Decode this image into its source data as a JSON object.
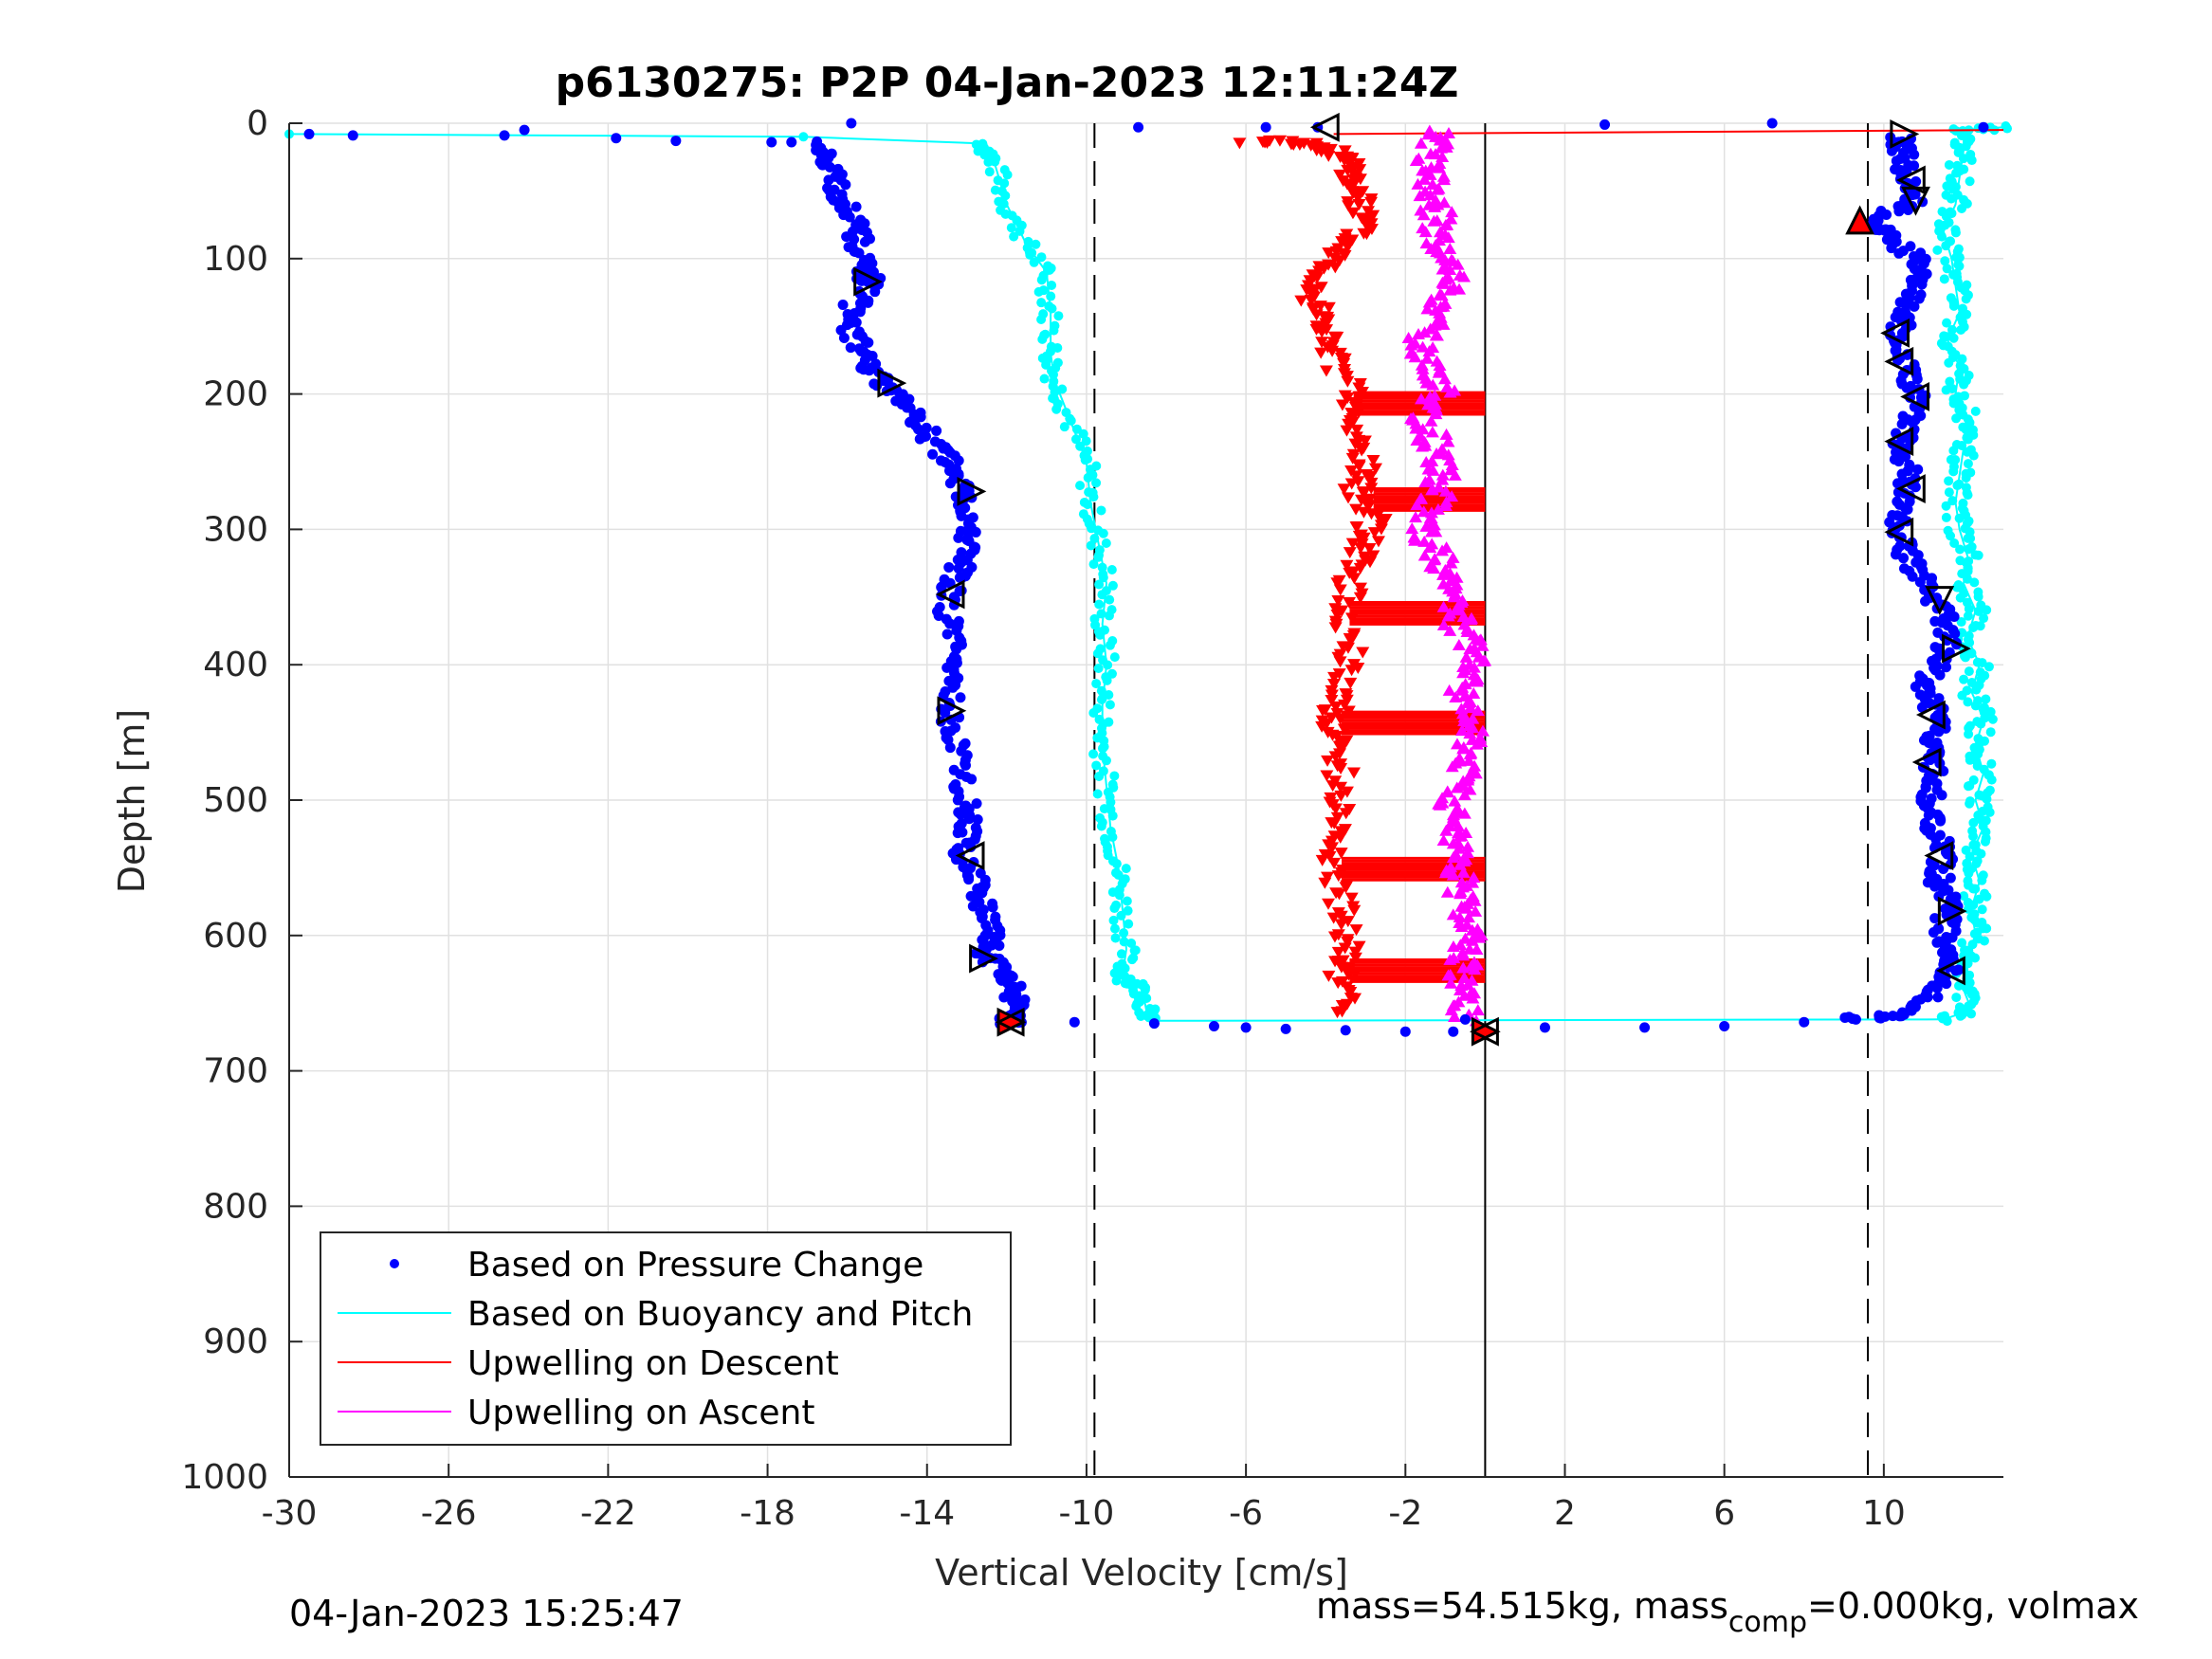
{
  "chart_data": {
    "type": "scatter",
    "title": "p6130275: P2P 04-Jan-2023 12:11:24Z",
    "xlabel": "Vertical Velocity [cm/s]",
    "ylabel": "Depth [m]",
    "xlim": [
      -30,
      13
    ],
    "ylim": [
      0,
      1000
    ],
    "y_reversed": true,
    "grid": true,
    "xticks": [
      -30,
      -26,
      -22,
      -18,
      -14,
      -10,
      -6,
      -2,
      2,
      6,
      10
    ],
    "yticks": [
      0,
      100,
      200,
      300,
      400,
      500,
      600,
      700,
      800,
      900,
      1000
    ],
    "reference_lines": [
      {
        "style": "dashed",
        "x": -9.8
      },
      {
        "style": "dashed",
        "x": 9.6
      },
      {
        "style": "solid",
        "x": 0
      }
    ],
    "legend": {
      "position": "lower-left",
      "entries": [
        {
          "label": "Based on Pressure Change",
          "color": "#0000ff",
          "marker": "dot"
        },
        {
          "label": "Based on Buoyancy and Pitch",
          "color": "#00ffff",
          "marker": "line"
        },
        {
          "label": "Upwelling on Descent",
          "color": "#ff0000",
          "marker": "line"
        },
        {
          "label": "Upwelling on Ascent",
          "color": "#ff00ff",
          "marker": "line"
        }
      ]
    },
    "series": [
      {
        "name": "Based on Pressure Change",
        "color": "#0000ff",
        "descent_profile": [
          [
            -16.8,
            15
          ],
          [
            -16.5,
            30
          ],
          [
            -16.2,
            50
          ],
          [
            -15.8,
            70
          ],
          [
            -15.7,
            90
          ],
          [
            -15.6,
            110
          ],
          [
            -15.3,
            120
          ],
          [
            -16.0,
            140
          ],
          [
            -15.8,
            160
          ],
          [
            -15.5,
            180
          ],
          [
            -15.0,
            195
          ],
          [
            -14.5,
            210
          ],
          [
            -14.0,
            230
          ],
          [
            -13.5,
            250
          ],
          [
            -13.2,
            270
          ],
          [
            -13.0,
            290
          ],
          [
            -13.0,
            310
          ],
          [
            -13.2,
            330
          ],
          [
            -13.5,
            350
          ],
          [
            -13.4,
            380
          ],
          [
            -13.5,
            410
          ],
          [
            -13.4,
            440
          ],
          [
            -13.2,
            470
          ],
          [
            -13.0,
            500
          ],
          [
            -13.0,
            520
          ],
          [
            -13.1,
            540
          ],
          [
            -12.8,
            560
          ],
          [
            -12.6,
            580
          ],
          [
            -12.4,
            600
          ],
          [
            -12.5,
            615
          ],
          [
            -12.0,
            630
          ],
          [
            -11.8,
            645
          ],
          [
            -11.9,
            660
          ],
          [
            -11.9,
            665
          ]
        ],
        "ascent_profile": [
          [
            -0.5,
            662
          ],
          [
            1.5,
            668
          ],
          [
            4,
            668
          ],
          [
            6,
            667
          ],
          [
            8,
            664
          ],
          [
            9.3,
            662
          ],
          [
            10.6,
            658
          ],
          [
            11.3,
            640
          ],
          [
            11.7,
            620
          ],
          [
            11.5,
            600
          ],
          [
            11.6,
            580
          ],
          [
            11.4,
            560
          ],
          [
            11.5,
            540
          ],
          [
            11.3,
            520
          ],
          [
            11.2,
            500
          ],
          [
            11.3,
            480
          ],
          [
            11.1,
            460
          ],
          [
            11.4,
            440
          ],
          [
            11.0,
            420
          ],
          [
            11.3,
            400
          ],
          [
            11.6,
            380
          ],
          [
            11.5,
            360
          ],
          [
            11.0,
            340
          ],
          [
            10.6,
            320
          ],
          [
            10.3,
            300
          ],
          [
            10.5,
            280
          ],
          [
            10.7,
            260
          ],
          [
            10.4,
            240
          ],
          [
            10.7,
            220
          ],
          [
            10.8,
            200
          ],
          [
            10.5,
            180
          ],
          [
            10.3,
            160
          ],
          [
            10.6,
            140
          ],
          [
            10.9,
            120
          ],
          [
            10.8,
            100
          ],
          [
            10.0,
            80
          ],
          [
            9.5,
            75
          ],
          [
            10.7,
            60
          ],
          [
            10.5,
            40
          ],
          [
            10.5,
            20
          ],
          [
            10.4,
            10
          ]
        ],
        "surface_points": [
          [
            -29.5,
            8
          ],
          [
            -28.4,
            9
          ],
          [
            -24.6,
            9
          ],
          [
            -24.1,
            5
          ],
          [
            -21.8,
            11
          ],
          [
            -20.3,
            13
          ],
          [
            -17.9,
            14
          ],
          [
            -17.4,
            14
          ],
          [
            -15.9,
            0
          ],
          [
            -8.7,
            3
          ],
          [
            -5.5,
            3
          ],
          [
            -4.2,
            3
          ],
          [
            3.0,
            1
          ],
          [
            7.2,
            0
          ],
          [
            12.5,
            3
          ],
          [
            -10.3,
            664
          ],
          [
            -8.3,
            665
          ],
          [
            -6.8,
            667
          ],
          [
            -6.0,
            668
          ],
          [
            -5.0,
            669
          ],
          [
            -3.5,
            670
          ],
          [
            -2.0,
            671
          ],
          [
            -0.8,
            671
          ]
        ]
      },
      {
        "name": "Based on Buoyancy and Pitch",
        "color": "#00ffff",
        "descent_profile": [
          [
            -30,
            8
          ],
          [
            -17.1,
            10
          ],
          [
            -12.6,
            15
          ],
          [
            -12.3,
            30
          ],
          [
            -12.0,
            60
          ],
          [
            -11.5,
            90
          ],
          [
            -11.0,
            110
          ],
          [
            -10.9,
            140
          ],
          [
            -10.9,
            170
          ],
          [
            -10.8,
            190
          ],
          [
            -10.4,
            220
          ],
          [
            -10.0,
            250
          ],
          [
            -9.9,
            280
          ],
          [
            -9.7,
            310
          ],
          [
            -9.5,
            340
          ],
          [
            -9.6,
            370
          ],
          [
            -9.5,
            400
          ],
          [
            -9.6,
            430
          ],
          [
            -9.6,
            460
          ],
          [
            -9.5,
            490
          ],
          [
            -9.4,
            520
          ],
          [
            -9.2,
            550
          ],
          [
            -9.1,
            580
          ],
          [
            -9.0,
            610
          ],
          [
            -9.1,
            630
          ],
          [
            -8.6,
            640
          ],
          [
            -8.5,
            655
          ],
          [
            -8.5,
            663
          ]
        ],
        "ascent_profile": [
          [
            -8.5,
            663
          ],
          [
            11.5,
            662
          ],
          [
            12.2,
            655
          ],
          [
            12.0,
            640
          ],
          [
            12.0,
            620
          ],
          [
            12.3,
            600
          ],
          [
            12.2,
            580
          ],
          [
            12.4,
            560
          ],
          [
            12.2,
            540
          ],
          [
            12.5,
            520
          ],
          [
            12.3,
            500
          ],
          [
            12.5,
            480
          ],
          [
            12.3,
            460
          ],
          [
            12.5,
            440
          ],
          [
            12.2,
            420
          ],
          [
            12.4,
            400
          ],
          [
            12.1,
            380
          ],
          [
            12.3,
            360
          ],
          [
            12.0,
            340
          ],
          [
            12.1,
            320
          ],
          [
            11.9,
            300
          ],
          [
            11.8,
            280
          ],
          [
            11.9,
            260
          ],
          [
            12.0,
            240
          ],
          [
            12.1,
            220
          ],
          [
            11.8,
            200
          ],
          [
            11.9,
            180
          ],
          [
            11.6,
            160
          ],
          [
            11.9,
            140
          ],
          [
            11.8,
            120
          ],
          [
            11.7,
            100
          ],
          [
            11.5,
            80
          ],
          [
            11.8,
            60
          ],
          [
            11.9,
            40
          ],
          [
            12.0,
            20
          ],
          [
            12.0,
            5
          ],
          [
            13,
            3
          ]
        ]
      },
      {
        "name": "Upwelling on Descent",
        "color": "#ff0000",
        "profile": [
          [
            -5.9,
            13
          ],
          [
            -4.3,
            15
          ],
          [
            -3.5,
            25
          ],
          [
            -3.3,
            40
          ],
          [
            -3.2,
            55
          ],
          [
            -3.0,
            75
          ],
          [
            -3.5,
            90
          ],
          [
            -4.0,
            110
          ],
          [
            -4.3,
            130
          ],
          [
            -4.0,
            150
          ],
          [
            -3.9,
            170
          ],
          [
            -3.3,
            200
          ],
          [
            -3.4,
            220
          ],
          [
            -3.0,
            250
          ],
          [
            -3.2,
            270
          ],
          [
            -2.8,
            290
          ],
          [
            -3.0,
            310
          ],
          [
            -3.3,
            330
          ],
          [
            -3.5,
            360
          ],
          [
            -3.4,
            390
          ],
          [
            -3.6,
            420
          ],
          [
            -3.8,
            440
          ],
          [
            -3.7,
            460
          ],
          [
            -3.6,
            490
          ],
          [
            -3.7,
            520
          ],
          [
            -3.8,
            550
          ],
          [
            -3.6,
            580
          ],
          [
            -3.5,
            610
          ],
          [
            -3.6,
            630
          ],
          [
            -3.6,
            660
          ]
        ],
        "surface_line": [
          [
            -3.8,
            8
          ],
          [
            13,
            5
          ]
        ],
        "horizontal_bars": [
          [
            -3.3,
            0,
            207
          ],
          [
            -2.8,
            0,
            278
          ],
          [
            -3.4,
            0,
            362
          ],
          [
            -3.6,
            0,
            443
          ],
          [
            -3.6,
            0,
            551
          ],
          [
            -3.4,
            0,
            626
          ]
        ]
      },
      {
        "name": "Upwelling on Ascent",
        "color": "#ff00ff",
        "profile": [
          [
            -0.5,
            662
          ],
          [
            -0.5,
            640
          ],
          [
            -0.6,
            620
          ],
          [
            -0.4,
            600
          ],
          [
            -0.6,
            580
          ],
          [
            -0.5,
            560
          ],
          [
            -0.8,
            540
          ],
          [
            -0.7,
            520
          ],
          [
            -0.8,
            500
          ],
          [
            -0.6,
            480
          ],
          [
            -0.4,
            460
          ],
          [
            -0.2,
            440
          ],
          [
            -0.5,
            420
          ],
          [
            -0.3,
            400
          ],
          [
            -0.5,
            380
          ],
          [
            -0.8,
            360
          ],
          [
            -0.9,
            340
          ],
          [
            -1.2,
            320
          ],
          [
            -1.5,
            300
          ],
          [
            -1.3,
            280
          ],
          [
            -1.0,
            260
          ],
          [
            -1.2,
            240
          ],
          [
            -1.6,
            220
          ],
          [
            -1.1,
            200
          ],
          [
            -1.4,
            180
          ],
          [
            -1.6,
            160
          ],
          [
            -1.2,
            140
          ],
          [
            -0.8,
            120
          ],
          [
            -1.0,
            100
          ],
          [
            -1.3,
            80
          ],
          [
            -1.2,
            60
          ],
          [
            -1.4,
            40
          ],
          [
            -1.3,
            20
          ],
          [
            -1.1,
            5
          ]
        ]
      }
    ],
    "markers": {
      "triangles_right": [
        [
          -15.5,
          117
        ],
        [
          -14.9,
          192
        ],
        [
          -12.9,
          272
        ],
        [
          -13.4,
          434
        ],
        [
          -12.6,
          617
        ],
        [
          11.8,
          388
        ],
        [
          11.7,
          582
        ],
        [
          10.5,
          8
        ]
      ],
      "triangles_left": [
        [
          -4.0,
          3
        ],
        [
          -13.4,
          348
        ],
        [
          -12.9,
          541
        ],
        [
          10.7,
          42
        ],
        [
          10.3,
          155
        ],
        [
          10.4,
          176
        ],
        [
          10.8,
          202
        ],
        [
          10.4,
          235
        ],
        [
          10.7,
          270
        ],
        [
          10.4,
          302
        ],
        [
          11.2,
          437
        ],
        [
          11.1,
          472
        ],
        [
          11.4,
          541
        ],
        [
          11.7,
          626
        ]
      ],
      "triangles_down": [
        [
          10.8,
          57
        ],
        [
          11.4,
          352
        ]
      ],
      "triangle_up_red": [
        [
          9.4,
          72
        ]
      ],
      "star_markers": [
        [
          -11.9,
          664
        ],
        [
          0,
          671
        ]
      ]
    },
    "footer_left": "04-Jan-2023 15:25:47",
    "footer_right": "mass=54.515kg, mass",
    "footer_right_sub": "comp",
    "footer_right_tail": "=0.000kg, volmax"
  }
}
